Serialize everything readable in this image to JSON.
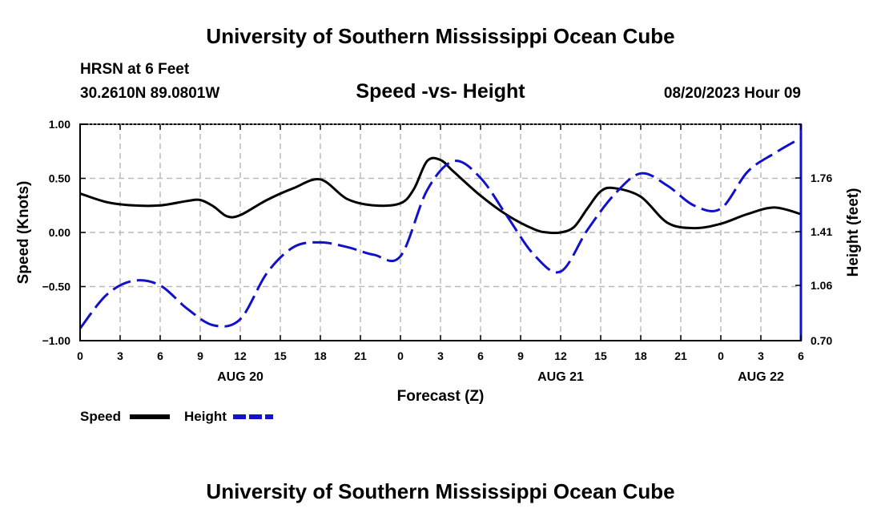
{
  "header": {
    "title": "University of Southern Mississippi Ocean Cube",
    "station": "HRSN at 6 Feet",
    "coords": "30.2610N  89.0801W",
    "datetime": "08/20/2023 Hour 09"
  },
  "footer": {
    "title": "University of Southern Mississippi Ocean Cube"
  },
  "chart_data": {
    "type": "line",
    "title": "Speed -vs- Height",
    "xlabel": "Forecast (Z)",
    "ylabel": "Speed (Knots)",
    "y2label": "Height (feet)",
    "x_unit": "forecast hour",
    "xlim": [
      0,
      54
    ],
    "ylim": [
      -1.0,
      1.0
    ],
    "y2lim": [
      0.7,
      2.11
    ],
    "x_ticks": [
      0,
      3,
      6,
      9,
      12,
      15,
      18,
      21,
      24,
      27,
      30,
      33,
      36,
      39,
      42,
      45,
      48,
      51,
      54
    ],
    "x_tick_labels": [
      "0",
      "3",
      "6",
      "9",
      "12",
      "15",
      "18",
      "21",
      "0",
      "3",
      "6",
      "9",
      "12",
      "15",
      "18",
      "21",
      "0",
      "3",
      "6"
    ],
    "date_labels": [
      {
        "x": 12,
        "label": "AUG 20"
      },
      {
        "x": 36,
        "label": "AUG 21"
      },
      {
        "x": 51,
        "label": "AUG 22"
      }
    ],
    "y_ticks": [
      1.0,
      0.5,
      0.0,
      -0.5,
      -1.0
    ],
    "y_tick_labels": [
      "1.00",
      "0.50",
      "0.00",
      "−0.50",
      "−1.00"
    ],
    "y2_ticks": [
      1.76,
      1.41,
      1.06,
      0.7
    ],
    "y2_tick_labels": [
      "1.76",
      "1.41",
      "1.06",
      "0.70"
    ],
    "grid": true,
    "legend_position": "bottom-left",
    "series": [
      {
        "name": "Speed",
        "axis": "left",
        "color": "#000000",
        "dash": "solid",
        "x": [
          0,
          2,
          4,
          6,
          8,
          9,
          10,
          11,
          12,
          14,
          16,
          18,
          20,
          22,
          24,
          25,
          26,
          27,
          28,
          30,
          32,
          34,
          35,
          36,
          37,
          38,
          39,
          40,
          42,
          44,
          46,
          48,
          50,
          52,
          54
        ],
        "y": [
          0.36,
          0.28,
          0.25,
          0.25,
          0.29,
          0.3,
          0.24,
          0.15,
          0.16,
          0.3,
          0.41,
          0.49,
          0.31,
          0.25,
          0.27,
          0.4,
          0.66,
          0.67,
          0.56,
          0.34,
          0.16,
          0.03,
          0.0,
          0.0,
          0.05,
          0.22,
          0.38,
          0.41,
          0.33,
          0.09,
          0.04,
          0.08,
          0.17,
          0.23,
          0.17
        ]
      },
      {
        "name": "Height",
        "axis": "right",
        "color": "#1111cc",
        "dash": "dashed",
        "x": [
          0,
          2,
          4,
          6,
          8,
          10,
          12,
          14,
          16,
          18,
          20,
          22,
          24,
          26,
          28,
          30,
          32,
          34,
          36,
          38,
          40,
          42,
          44,
          46,
          48,
          50,
          52,
          54
        ],
        "y": [
          0.78,
          1.0,
          1.09,
          1.06,
          0.91,
          0.8,
          0.84,
          1.14,
          1.31,
          1.34,
          1.31,
          1.26,
          1.25,
          1.68,
          1.87,
          1.76,
          1.51,
          1.26,
          1.15,
          1.42,
          1.65,
          1.79,
          1.71,
          1.58,
          1.56,
          1.8,
          1.92,
          2.02
        ]
      }
    ]
  }
}
